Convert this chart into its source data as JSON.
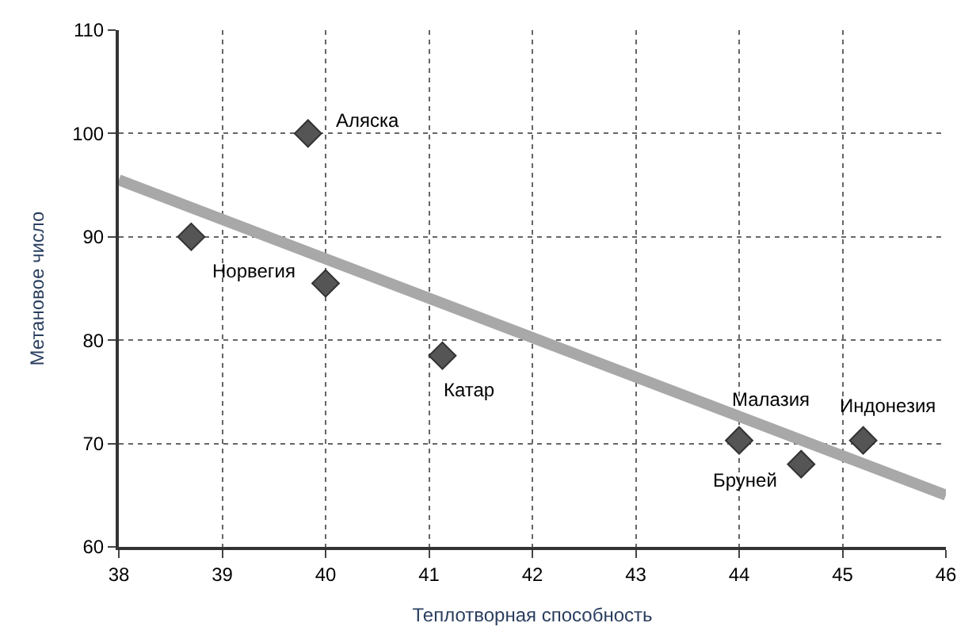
{
  "chart_data": {
    "type": "scatter",
    "xlabel": "Теплотворная способность",
    "ylabel": "Метановое число",
    "x": [
      38.7,
      39.83,
      40.0,
      41.13,
      44.0,
      44.6,
      45.2
    ],
    "series": [
      {
        "color": "#555555",
        "marker": "diamond",
        "values": [
          90,
          100,
          85.5,
          78.5,
          70.3,
          68,
          70.3
        ]
      },
      {
        "type": "line",
        "color": "#a8a8a8",
        "marker": "none",
        "x": [
          38,
          46
        ],
        "values": [
          95.5,
          65
        ]
      }
    ],
    "annotations": [
      {
        "text": "Аляска",
        "x": 39.83,
        "y": 100
      },
      {
        "text": "Норвегия",
        "x": 38.7,
        "y": 90
      },
      {
        "text": "Катар",
        "x": 41.13,
        "y": 78.5
      },
      {
        "text": "Малазия",
        "x": 44.0,
        "y": 70.3
      },
      {
        "text": "Индонезия",
        "x": 45.2,
        "y": 70.3
      },
      {
        "text": "Бруней",
        "x": 44.6,
        "y": 68
      }
    ],
    "xlim": [
      38,
      46
    ],
    "xticks": [
      38,
      39,
      40,
      41,
      42,
      43,
      44,
      45,
      46
    ],
    "ylim": [
      60,
      110
    ],
    "yticks": [
      60,
      70,
      80,
      90,
      100,
      110
    ],
    "grid": true
  }
}
